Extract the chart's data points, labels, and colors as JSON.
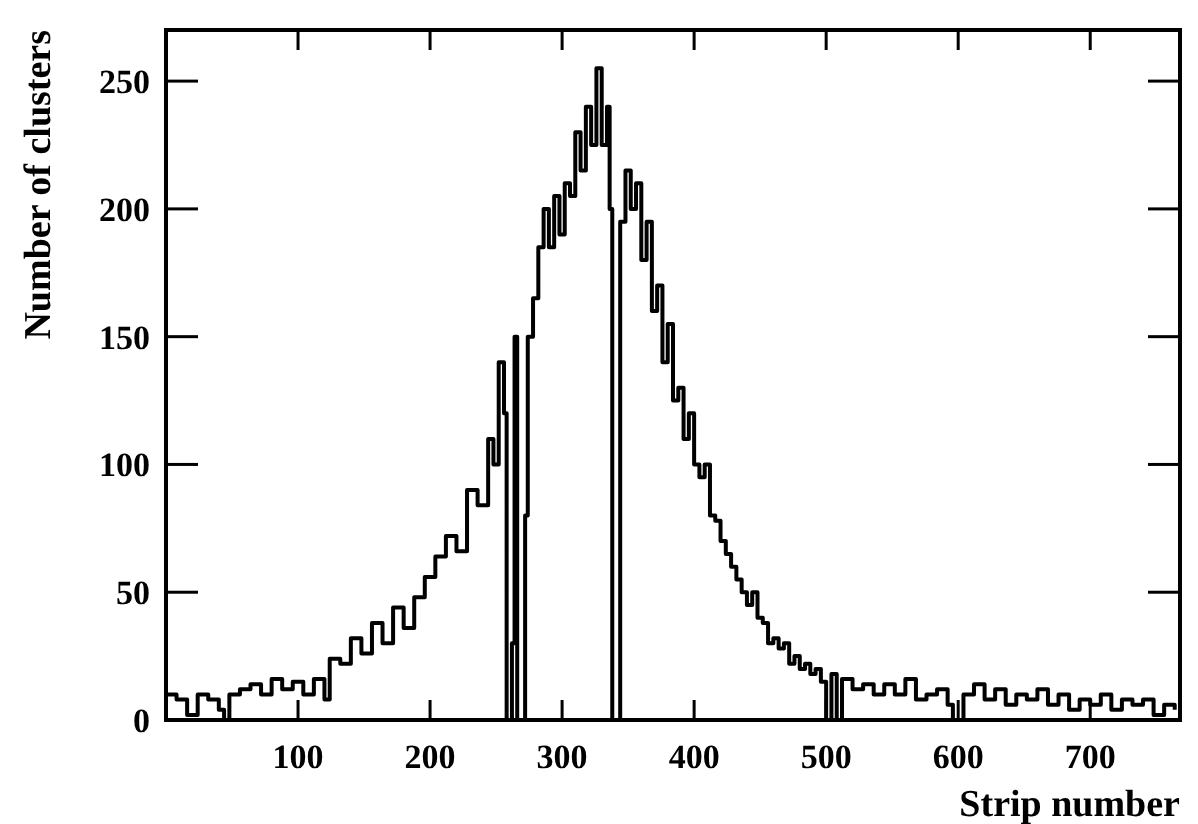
{
  "chart_data": {
    "type": "step",
    "xlabel": "Strip number",
    "ylabel": "Number of clusters",
    "xlim": [
      0,
      768
    ],
    "ylim": [
      0,
      270
    ],
    "xticks": [
      100,
      200,
      300,
      400,
      500,
      600,
      700
    ],
    "yticks": [
      0,
      50,
      100,
      150,
      200,
      250
    ],
    "grid": false,
    "series": [
      {
        "color": "#000000",
        "x": [
          0,
          8,
          16,
          24,
          32,
          40,
          44,
          48,
          56,
          64,
          72,
          80,
          88,
          96,
          104,
          112,
          120,
          124,
          132,
          140,
          148,
          156,
          164,
          172,
          180,
          188,
          196,
          204,
          212,
          220,
          228,
          236,
          244,
          248,
          252,
          256,
          258,
          262,
          264,
          266,
          270,
          272,
          274,
          278,
          282,
          286,
          290,
          294,
          298,
          302,
          306,
          310,
          314,
          318,
          322,
          326,
          330,
          334,
          336,
          338,
          342,
          344,
          348,
          352,
          356,
          360,
          364,
          368,
          372,
          376,
          380,
          384,
          388,
          392,
          396,
          400,
          404,
          408,
          412,
          416,
          420,
          424,
          428,
          432,
          436,
          440,
          444,
          448,
          452,
          456,
          460,
          464,
          468,
          472,
          476,
          480,
          484,
          488,
          492,
          496,
          500,
          504,
          508,
          512,
          520,
          528,
          536,
          544,
          552,
          560,
          568,
          576,
          584,
          592,
          596,
          600,
          604,
          612,
          620,
          628,
          636,
          644,
          652,
          660,
          668,
          676,
          684,
          692,
          700,
          708,
          716,
          724,
          732,
          740,
          748,
          756,
          764
        ],
        "values": [
          10,
          8,
          2,
          10,
          8,
          4,
          0,
          10,
          12,
          14,
          10,
          16,
          12,
          15,
          10,
          16,
          8,
          24,
          22,
          32,
          26,
          38,
          30,
          44,
          36,
          48,
          56,
          64,
          72,
          66,
          90,
          84,
          110,
          100,
          140,
          120,
          0,
          30,
          150,
          0,
          0,
          80,
          150,
          165,
          185,
          200,
          185,
          205,
          190,
          210,
          205,
          230,
          215,
          240,
          225,
          255,
          225,
          240,
          200,
          0,
          0,
          195,
          215,
          200,
          210,
          180,
          195,
          160,
          170,
          140,
          155,
          125,
          130,
          110,
          120,
          100,
          95,
          100,
          80,
          78,
          70,
          65,
          60,
          55,
          50,
          45,
          50,
          40,
          38,
          30,
          32,
          28,
          30,
          22,
          25,
          20,
          22,
          18,
          20,
          15,
          0,
          18,
          0,
          16,
          12,
          14,
          10,
          14,
          10,
          16,
          8,
          10,
          12,
          6,
          0,
          0,
          10,
          14,
          8,
          12,
          6,
          10,
          8,
          12,
          6,
          10,
          4,
          8,
          6,
          10,
          4,
          8,
          6,
          8,
          2,
          6,
          4
        ]
      }
    ]
  }
}
